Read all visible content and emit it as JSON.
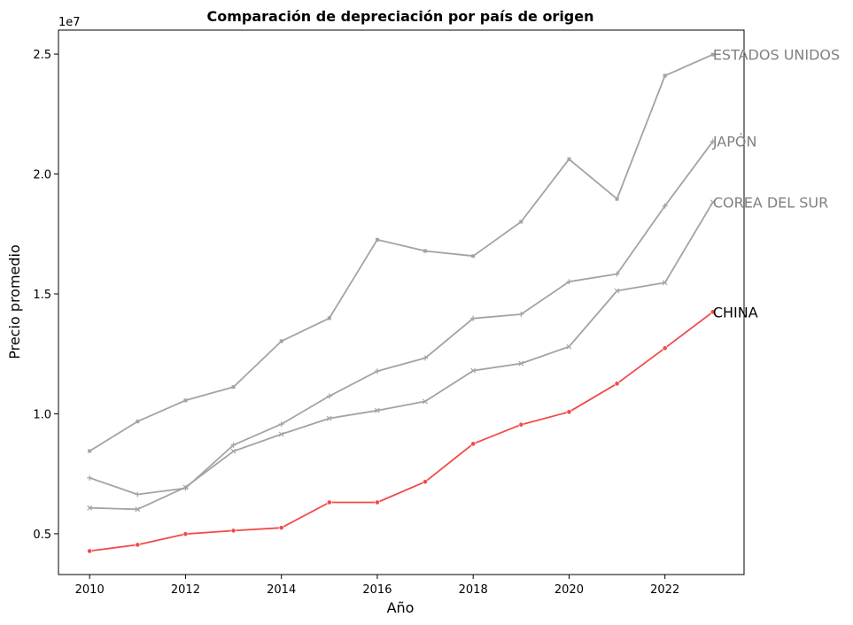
{
  "chart_data": {
    "type": "line",
    "title": "Comparación de depreciación por país de origen",
    "xlabel": "Año",
    "ylabel": "Precio promedio",
    "y_multiplier_label": "1e7",
    "x": [
      2010,
      2011,
      2012,
      2013,
      2014,
      2015,
      2016,
      2017,
      2018,
      2019,
      2020,
      2021,
      2022,
      2023
    ],
    "x_ticks": [
      2010,
      2012,
      2014,
      2016,
      2018,
      2020,
      2022
    ],
    "x_tick_labels": [
      "2010",
      "2012",
      "2014",
      "2016",
      "2018",
      "2020",
      "2022"
    ],
    "y_ticks": [
      5000000,
      10000000,
      15000000,
      20000000,
      25000000
    ],
    "y_tick_labels": [
      "0.5",
      "1.0",
      "1.5",
      "2.0",
      "2.5"
    ],
    "xlim": [
      2009.35,
      2023.65
    ],
    "ylim": [
      3300000,
      26000000
    ],
    "grid": false,
    "legend": "none",
    "series": [
      {
        "name": "ESTADOS UNIDOS",
        "color": "#a3a3a3",
        "label_color": "#808080",
        "marker": "square",
        "values": [
          8450000,
          9680000,
          10560000,
          11120000,
          13030000,
          13990000,
          17260000,
          16790000,
          16580000,
          18010000,
          20620000,
          18960000,
          24100000,
          24980000
        ]
      },
      {
        "name": "JAPÓN",
        "color": "#a3a3a3",
        "label_color": "#808080",
        "marker": "plus",
        "values": [
          7330000,
          6640000,
          6900000,
          8700000,
          9570000,
          10740000,
          11780000,
          12330000,
          13980000,
          14150000,
          15510000,
          15830000,
          18670000,
          21360000
        ]
      },
      {
        "name": "COREA DEL SUR",
        "color": "#a3a3a3",
        "label_color": "#808080",
        "marker": "x",
        "values": [
          6080000,
          6020000,
          6940000,
          8440000,
          9150000,
          9810000,
          10140000,
          10520000,
          11800000,
          12100000,
          12800000,
          15130000,
          15470000,
          18830000
        ]
      },
      {
        "name": "CHINA",
        "color": "#f24a49",
        "label_color": "#000000",
        "marker": "circle",
        "values": [
          4280000,
          4540000,
          4990000,
          5130000,
          5250000,
          6310000,
          6310000,
          7170000,
          8750000,
          9550000,
          10080000,
          11260000,
          12740000,
          14250000
        ]
      }
    ]
  }
}
